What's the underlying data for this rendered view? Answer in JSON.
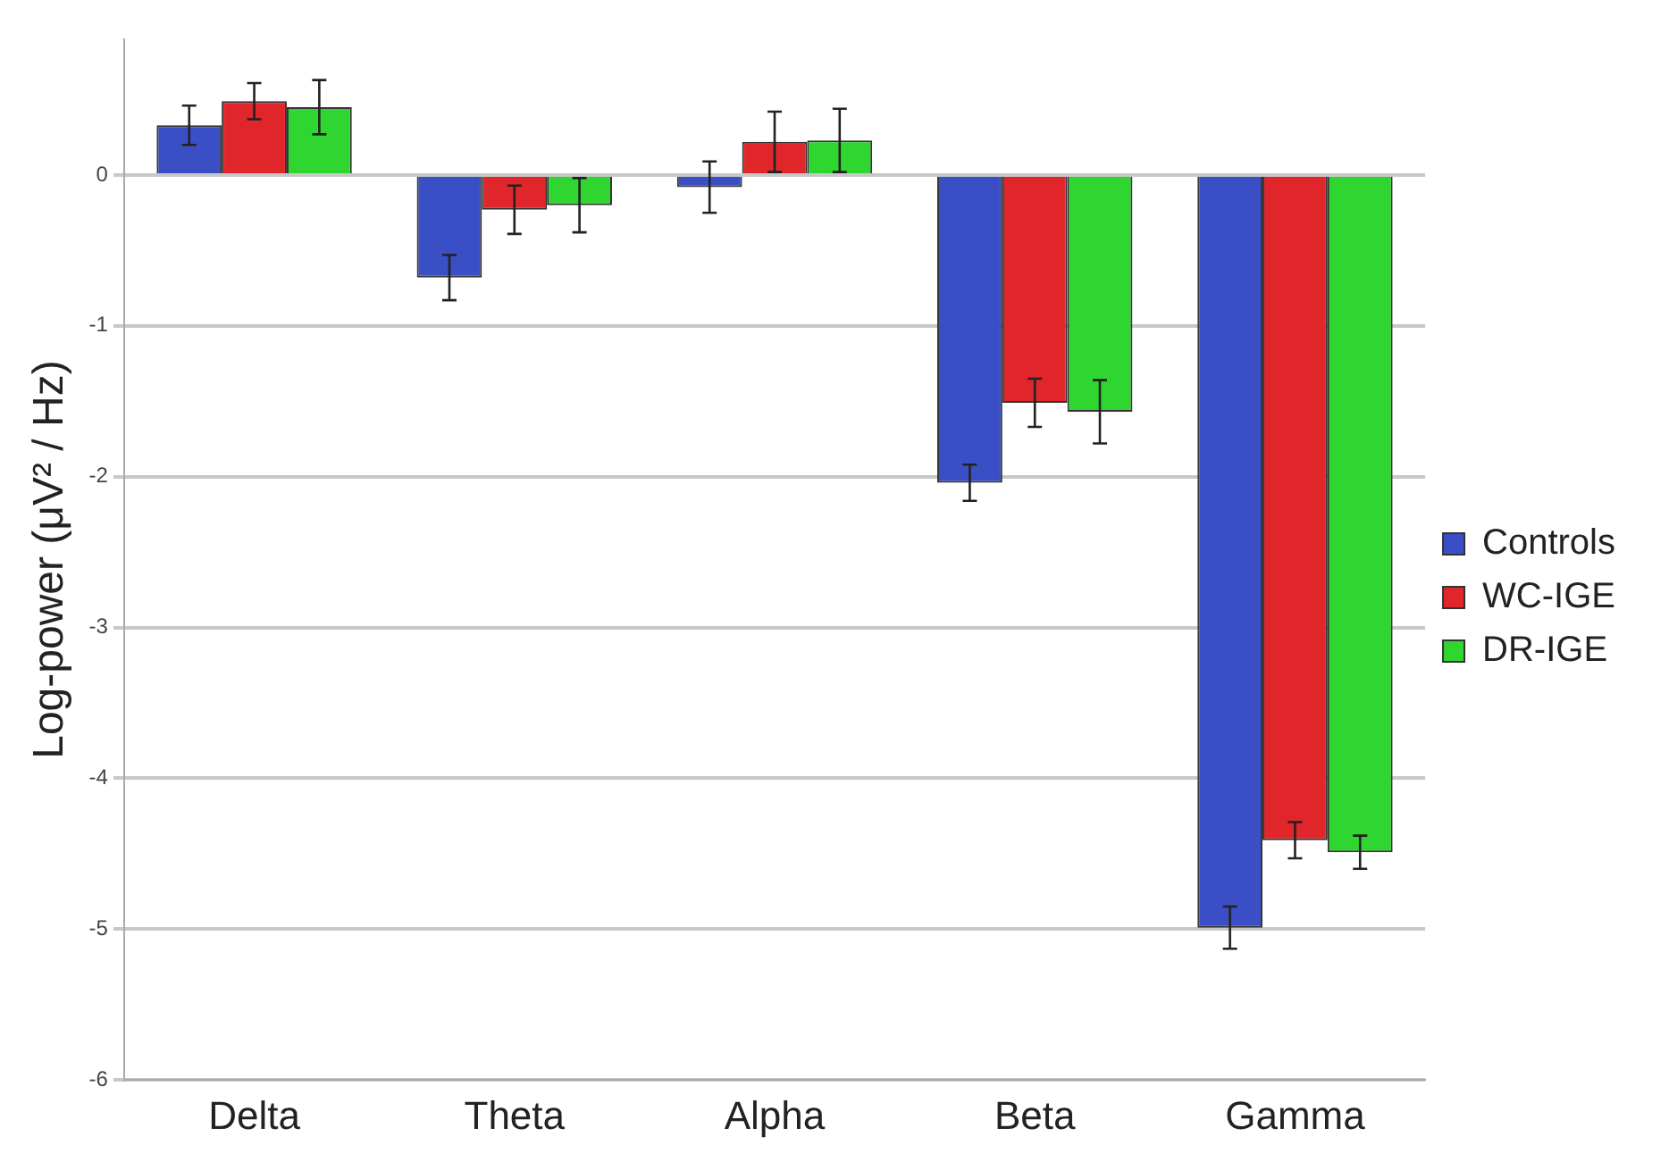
{
  "chart_data": {
    "type": "bar",
    "ylabel": "Log-power (μV² / Hz)",
    "categories": [
      "Delta",
      "Theta",
      "Alpha",
      "Beta",
      "Gamma"
    ],
    "series": [
      {
        "name": "Controls",
        "color": "#3a4fc6",
        "values": [
          0.33,
          -0.68,
          -0.08,
          -2.04,
          -4.99
        ],
        "errors": [
          0.13,
          0.15,
          0.17,
          0.12,
          0.14
        ]
      },
      {
        "name": "WC-IGE",
        "color": "#e0252b",
        "values": [
          0.49,
          -0.23,
          0.22,
          -1.51,
          -4.41
        ],
        "errors": [
          0.12,
          0.16,
          0.2,
          0.16,
          0.12
        ]
      },
      {
        "name": "DR-IGE",
        "color": "#2fd62f",
        "values": [
          0.45,
          -0.2,
          0.23,
          -1.57,
          -4.49
        ],
        "errors": [
          0.18,
          0.18,
          0.21,
          0.21,
          0.11
        ]
      }
    ],
    "ylim": [
      -6,
      0.9
    ],
    "yticks": [
      -6,
      -5,
      -4,
      -3,
      -2,
      -1,
      0
    ],
    "grid": "y",
    "legend": "right"
  }
}
